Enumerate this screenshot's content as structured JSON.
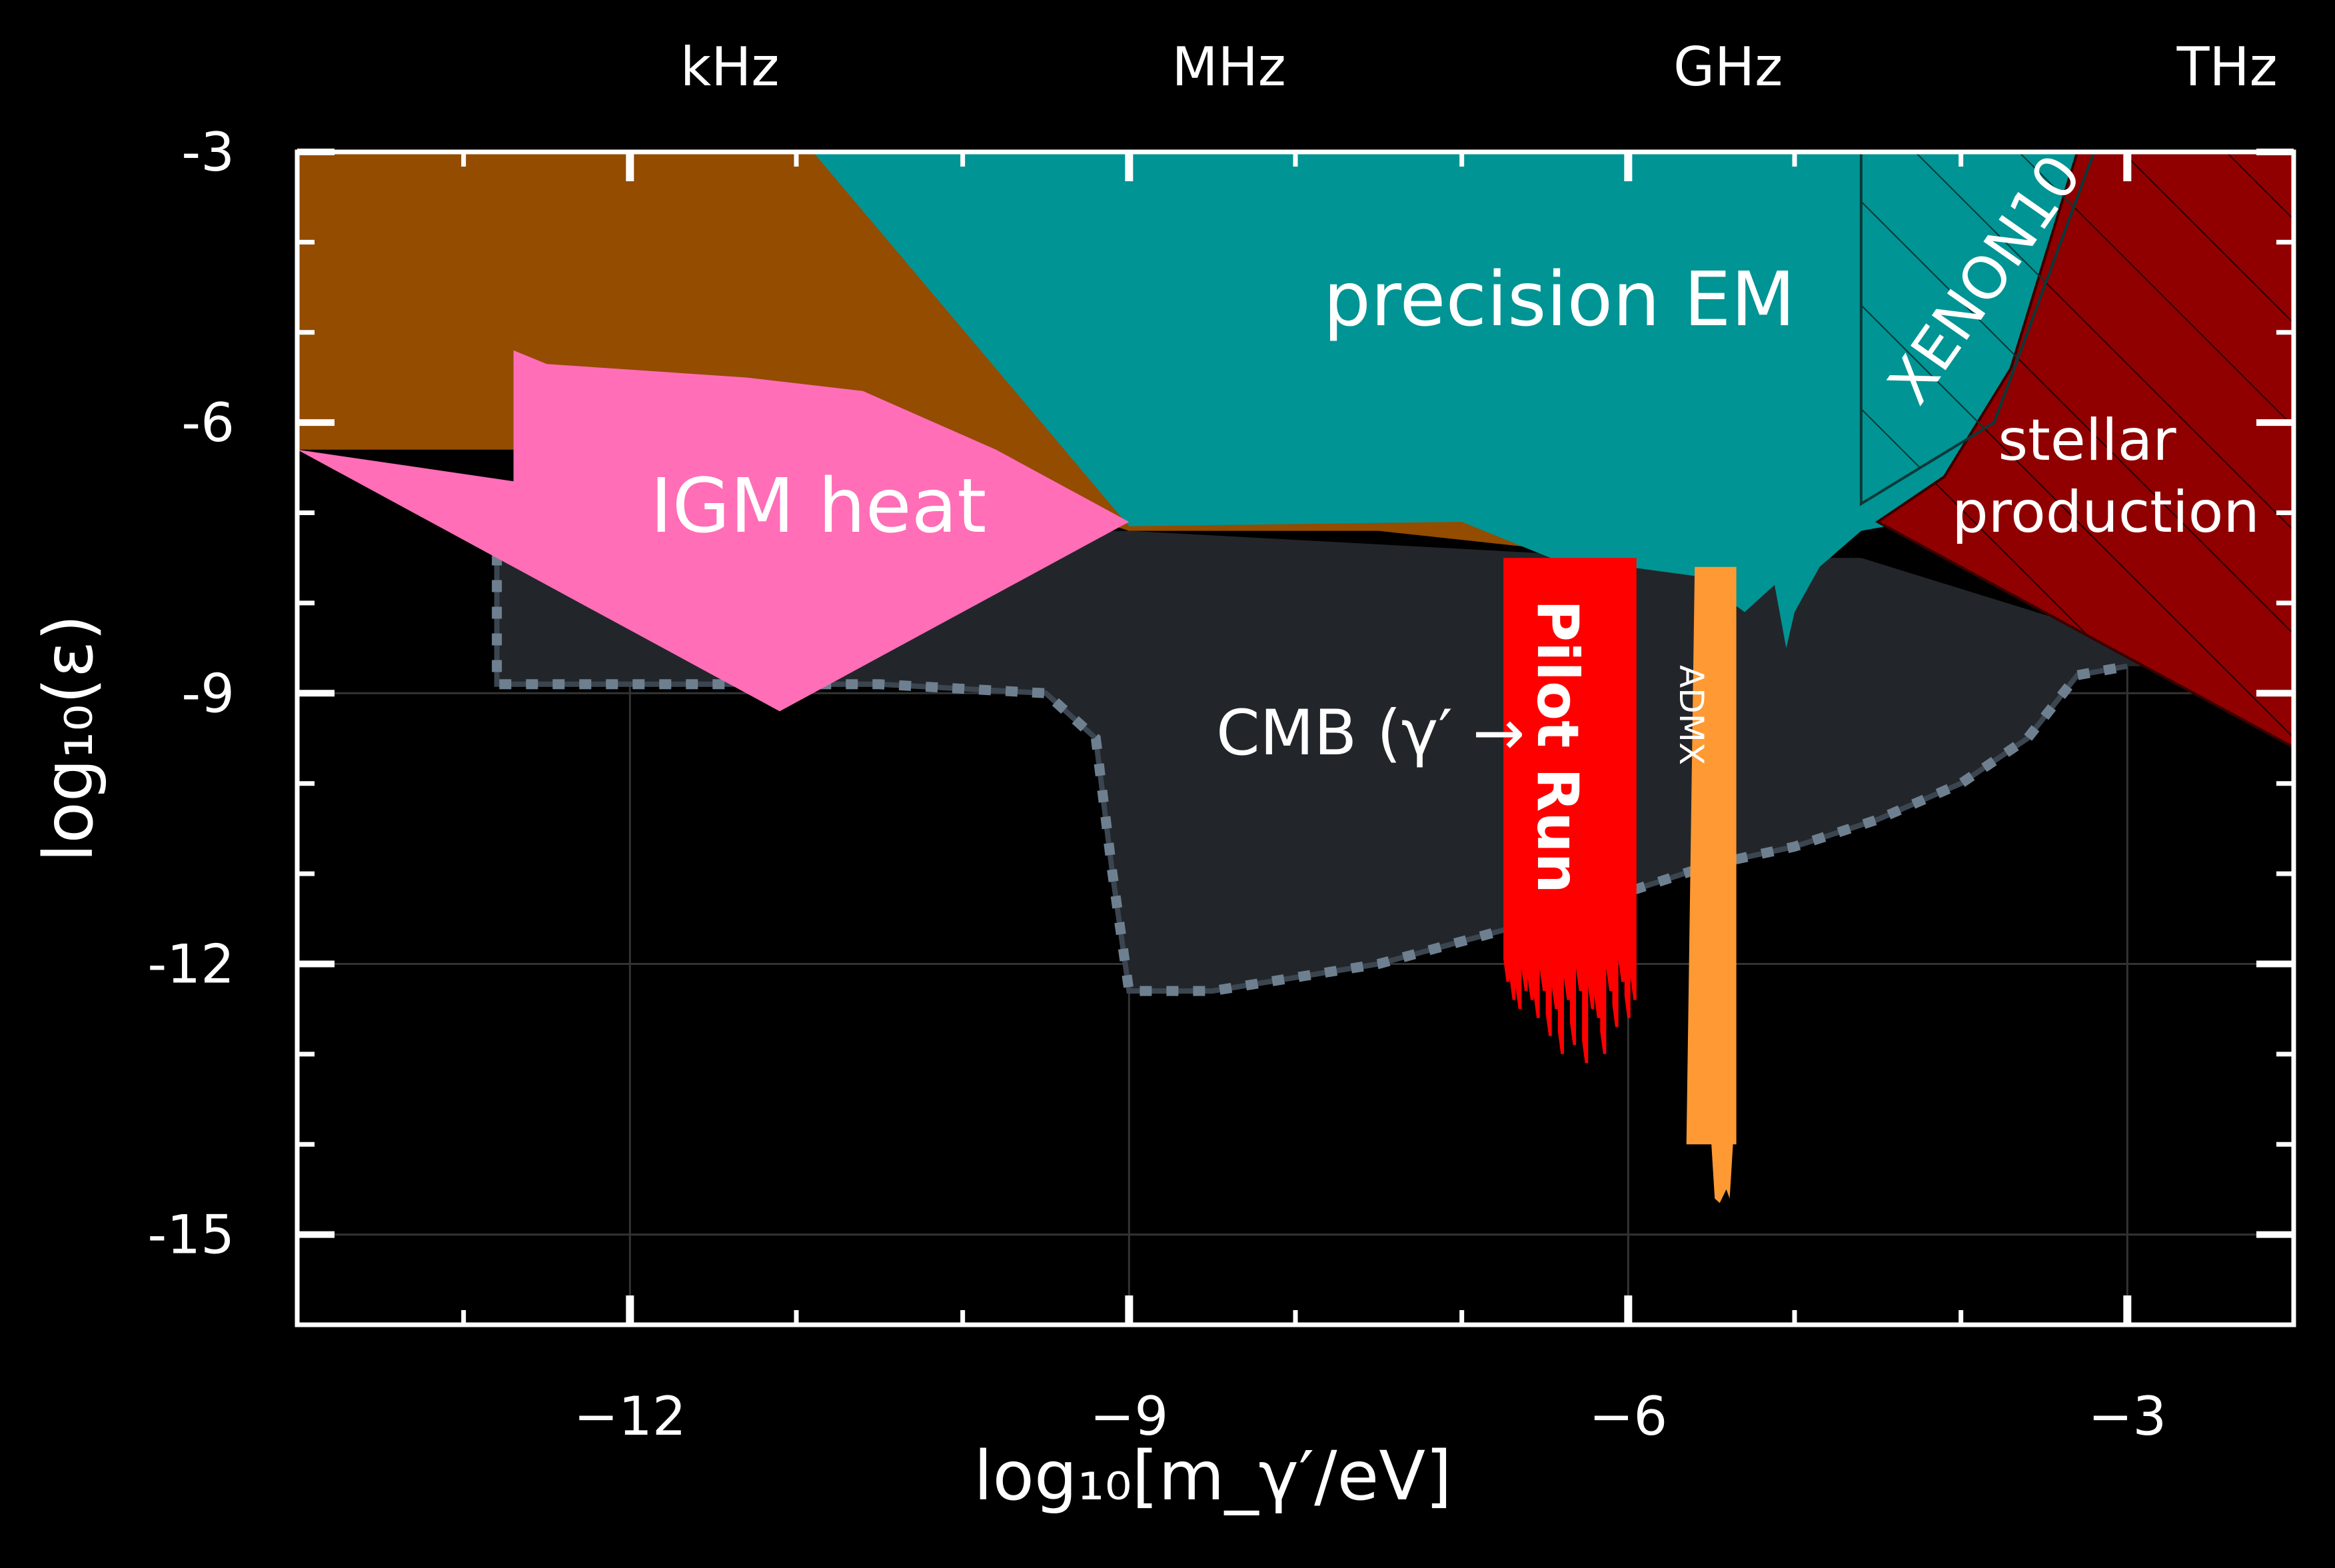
{
  "chart_data": {
    "type": "area",
    "background": "#000000",
    "xlabel": "log₁₀[m_γ′/eV]",
    "ylabel": "log₁₀(ε)",
    "xlim": [
      -14,
      -2
    ],
    "ylim": [
      -16,
      -3
    ],
    "grid": true,
    "x_ticks": [
      -12,
      -9,
      -6,
      -3
    ],
    "x_tick_labels": [
      "−12",
      "−9",
      "−6",
      "−3"
    ],
    "y_ticks": [
      -3,
      -6,
      -9,
      -12,
      -15
    ],
    "y_tick_labels": [
      "-3",
      "-6",
      "-9",
      "-12",
      "-15"
    ],
    "top_axis": {
      "ticks": [
        -12,
        -9,
        -6,
        -3
      ],
      "labels": [
        "kHz",
        "MHz",
        "GHz",
        "THz"
      ],
      "label_positions": [
        -11.4,
        -8.4,
        -5.4,
        -2.4
      ]
    },
    "series": [
      {
        "key": "orange",
        "label": "",
        "color": "#934c00",
        "points": [
          [
            -14,
            -3
          ],
          [
            -14,
            -6.3
          ],
          [
            -10.5,
            -6.3
          ],
          [
            -9,
            -7.2
          ],
          [
            -7.5,
            -7.2
          ],
          [
            -6.5,
            -7.4
          ],
          [
            -6,
            -7.5
          ],
          [
            -5.4,
            -7.4
          ],
          [
            -4.8,
            -7.4
          ],
          [
            -4.4,
            -7.0
          ],
          [
            -4.0,
            -6.5
          ],
          [
            -3.8,
            -6.0
          ],
          [
            -3.8,
            -3
          ]
        ]
      },
      {
        "key": "precision_em",
        "label": "precision EM",
        "color": "#009494",
        "points": [
          [
            -10.9,
            -3
          ],
          [
            -3.2,
            -3
          ],
          [
            -3.7,
            -6.0
          ],
          [
            -4.0,
            -6.6
          ],
          [
            -4.3,
            -7.1
          ],
          [
            -4.6,
            -7.2
          ],
          [
            -4.85,
            -7.6
          ],
          [
            -5.0,
            -8.1
          ],
          [
            -5.05,
            -8.5
          ],
          [
            -5.12,
            -7.8
          ],
          [
            -5.3,
            -8.1
          ],
          [
            -5.6,
            -7.7
          ],
          [
            -6.0,
            -7.6
          ],
          [
            -6.4,
            -7.55
          ],
          [
            -7.0,
            -7.1
          ],
          [
            -9.0,
            -7.15
          ]
        ]
      },
      {
        "key": "xenon10",
        "label": "XENON10",
        "color": "#009494",
        "hatch": true,
        "points": [
          [
            -4.6,
            -3
          ],
          [
            -3.2,
            -3
          ],
          [
            -3.8,
            -6.0
          ],
          [
            -4.6,
            -6.9
          ]
        ]
      },
      {
        "key": "cmb",
        "label": "CMB (γ′→γ)",
        "color": "#22262a",
        "dotted_color": "#6e8090",
        "points": [
          [
            -12.8,
            -7.45
          ],
          [
            -12.8,
            -8.9
          ],
          [
            -11.5,
            -8.9
          ],
          [
            -10.5,
            -8.9
          ],
          [
            -9.5,
            -9.0
          ],
          [
            -9.2,
            -9.5
          ],
          [
            -9.1,
            -11.0
          ],
          [
            -9.0,
            -12.3
          ],
          [
            -8.5,
            -12.3
          ],
          [
            -7.5,
            -12.0
          ],
          [
            -6.5,
            -11.5
          ],
          [
            -5.5,
            -10.9
          ],
          [
            -5.0,
            -10.7
          ],
          [
            -4.5,
            -10.4
          ],
          [
            -4.0,
            -10.0
          ],
          [
            -3.6,
            -9.5
          ],
          [
            -3.3,
            -8.8
          ],
          [
            -3.0,
            -8.7
          ],
          [
            -2.5,
            -8.7
          ],
          [
            -3.2,
            -8.3
          ],
          [
            -4.6,
            -7.5
          ],
          [
            -6.0,
            -7.5
          ],
          [
            -9.0,
            -7.2
          ],
          [
            -10.8,
            -7.2
          ]
        ]
      },
      {
        "key": "igm",
        "label": "IGM heat",
        "color": "#ff6eb7",
        "points": [
          [
            -14,
            -6.3
          ],
          [
            -12.7,
            -6.65
          ],
          [
            -12.7,
            -5.2
          ],
          [
            -12.5,
            -5.35
          ],
          [
            -11.3,
            -5.5
          ],
          [
            -10.6,
            -5.65
          ],
          [
            -9.8,
            -6.3
          ],
          [
            -9.2,
            -6.9
          ],
          [
            -9.0,
            -7.1
          ],
          [
            -11.1,
            -9.2
          ]
        ]
      },
      {
        "key": "stellar",
        "label": "stellar production",
        "color": "#900000",
        "hatch": true,
        "points": [
          [
            -3.3,
            -3
          ],
          [
            -2,
            -3
          ],
          [
            -2,
            -9.6
          ],
          [
            -4.5,
            -7.1
          ],
          [
            -4.1,
            -6.6
          ],
          [
            -3.7,
            -5.4
          ]
        ]
      },
      {
        "key": "pilot",
        "label": "Pilot Run",
        "color": "#ff0000",
        "x_range": [
          -6.75,
          -5.95
        ],
        "top": -7.5,
        "spike_values": [
          -12.2,
          -12.4,
          -12.5,
          -12.3,
          -12.4,
          -12.6,
          -12.3,
          -12.8,
          -12.5,
          -13.0,
          -12.4,
          -12.9,
          -12.3,
          -13.1,
          -12.5,
          -12.6,
          -13.0,
          -12.3,
          -12.7,
          -12.2,
          -12.6,
          -12.4
        ]
      },
      {
        "key": "admx",
        "label": "ADMX",
        "color": "#ff9933",
        "points": [
          [
            -5.6,
            -7.6
          ],
          [
            -5.35,
            -7.6
          ],
          [
            -5.35,
            -14.0
          ],
          [
            -5.37,
            -14.0
          ],
          [
            -5.39,
            -14.6
          ],
          [
            -5.41,
            -14.5
          ],
          [
            -5.45,
            -14.65
          ],
          [
            -5.48,
            -14.6
          ],
          [
            -5.5,
            -14.0
          ],
          [
            -5.65,
            -14.0
          ]
        ]
      }
    ],
    "annotations": {
      "precision_em": "precision EM",
      "igm": "IGM heat",
      "cmb": "CMB (γ′ →",
      "pilot": "Pilot Run",
      "admx": "ADMX",
      "xenon": "XENON10",
      "stellar_1": "stellar",
      "stellar_2": "production"
    }
  }
}
